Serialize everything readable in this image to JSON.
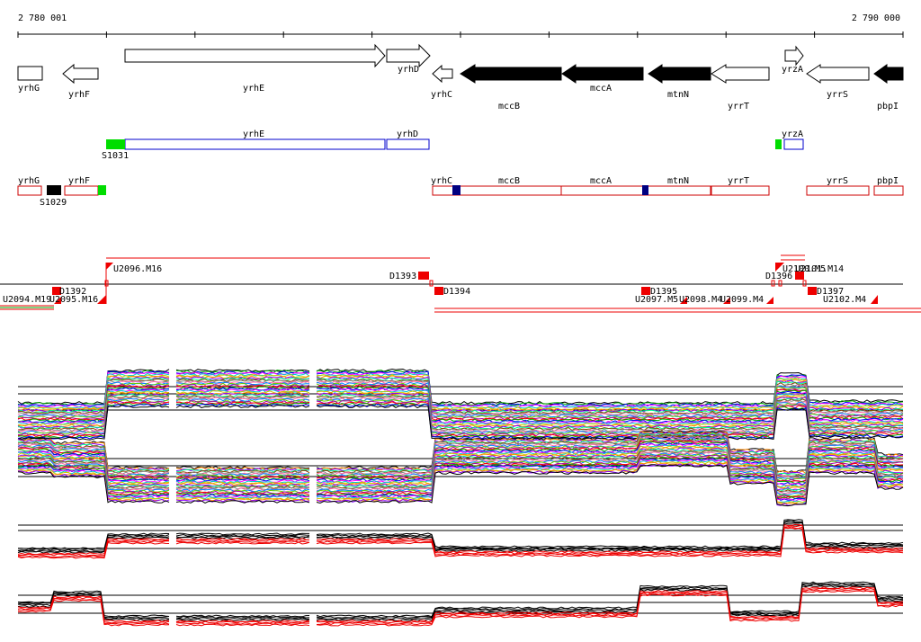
{
  "scale": {
    "start_label": "2 780 001",
    "end_label": "2 790 000"
  },
  "genes": [
    {
      "name": "yrhG",
      "strand": "box",
      "fill": "white"
    },
    {
      "name": "yrhF",
      "strand": "-",
      "fill": "white"
    },
    {
      "name": "yrhE",
      "strand": "+",
      "fill": "white"
    },
    {
      "name": "yrhD",
      "strand": "+",
      "fill": "white"
    },
    {
      "name": "yrhC",
      "strand": "-",
      "fill": "white"
    },
    {
      "name": "mccB",
      "strand": "-",
      "fill": "black"
    },
    {
      "name": "mccA",
      "strand": "-",
      "fill": "black"
    },
    {
      "name": "mtnN",
      "strand": "-",
      "fill": "black"
    },
    {
      "name": "yrrT",
      "strand": "-",
      "fill": "white"
    },
    {
      "name": "yrzA",
      "strand": "+",
      "fill": "white"
    },
    {
      "name": "yrrS",
      "strand": "-",
      "fill": "white"
    },
    {
      "name": "pbpI",
      "strand": "-",
      "fill": "black"
    }
  ],
  "plus_features": [
    {
      "name": "yrhE"
    },
    {
      "name": "yrhD"
    },
    {
      "name": "yrzA"
    }
  ],
  "plus_markers": [
    {
      "name": "S1031"
    }
  ],
  "minus_features": [
    {
      "name": "yrhG"
    },
    {
      "name": "yrhF"
    },
    {
      "name": "yrhC"
    },
    {
      "name": "mccB"
    },
    {
      "name": "mccA"
    },
    {
      "name": "mtnN"
    },
    {
      "name": "yrrT"
    },
    {
      "name": "yrrS"
    },
    {
      "name": "pbpI"
    }
  ],
  "minus_markers": [
    {
      "name": "S1029"
    }
  ],
  "segments_upper": [
    {
      "name": "U2096.M16"
    },
    {
      "name": "D1393"
    },
    {
      "name": "D1396"
    },
    {
      "name": "U2100.M5"
    },
    {
      "name": "U2101.M14"
    }
  ],
  "segments_lower": [
    {
      "name": "U2094.M19"
    },
    {
      "name": "D1392"
    },
    {
      "name": "U2095.M16"
    },
    {
      "name": "D1394"
    },
    {
      "name": "D1395"
    },
    {
      "name": "U2097.M5"
    },
    {
      "name": "U2098.M4"
    },
    {
      "name": "U2099.M4"
    },
    {
      "name": "D1397"
    },
    {
      "name": "U2102.M4"
    }
  ],
  "colors": {
    "gene_outline": "#000000",
    "gene_black": "#000000",
    "plus_track": "#0000cc",
    "minus_track": "#cc0000",
    "marker_green": "#00dd00",
    "marker_black": "#000000",
    "marker_navy": "#000080",
    "segment_red": "#ee0000",
    "profile_palette": [
      "#ff0000",
      "#00aa00",
      "#0000ff",
      "#ff00ff",
      "#00cccc",
      "#cccc00",
      "#ff8800",
      "#8800ff",
      "#00ff88",
      "#884400",
      "#888888",
      "#ff66aa",
      "#0088ff",
      "#66cc00",
      "#aa00aa"
    ]
  }
}
